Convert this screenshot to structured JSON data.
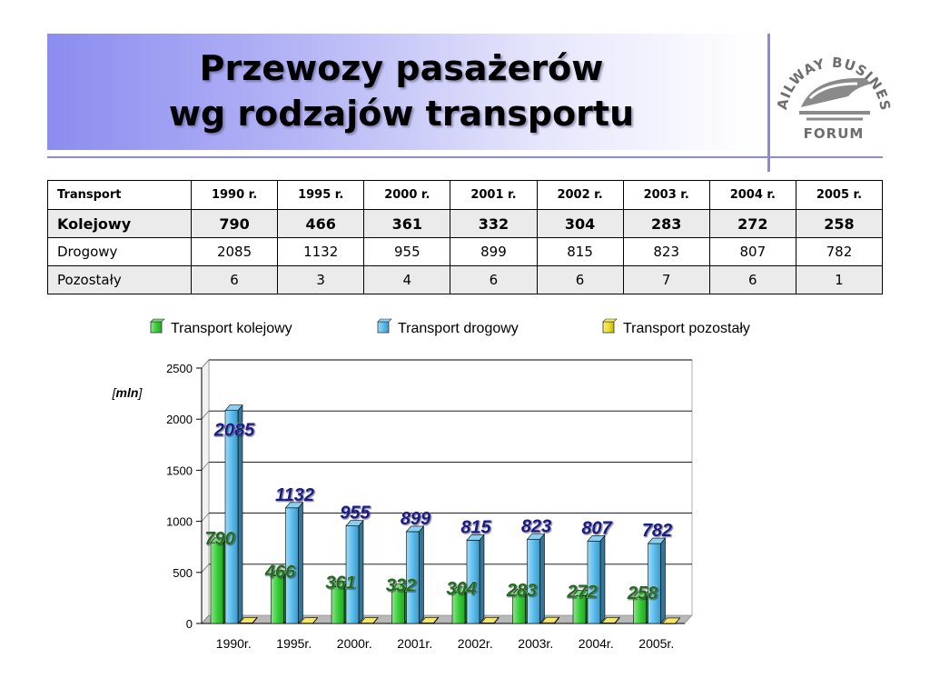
{
  "title_lines": [
    "Przewozy pasażerów",
    "wg rodzajów transportu"
  ],
  "logo": {
    "text": "RAILWAY BUSINESS FORUM"
  },
  "table": {
    "header": [
      "Transport",
      "1990 r.",
      "1995 r.",
      "2000 r.",
      "2001 r.",
      "2002 r.",
      "2003 r.",
      "2004 r.",
      "2005 r."
    ],
    "rows": [
      [
        "Kolejowy",
        "790",
        "466",
        "361",
        "332",
        "304",
        "283",
        "272",
        "258"
      ],
      [
        "Drogowy",
        "2085",
        "1132",
        "955",
        "899",
        "815",
        "823",
        "807",
        "782"
      ],
      [
        "Pozostały",
        "6",
        "3",
        "4",
        "6",
        "6",
        "7",
        "6",
        "1"
      ]
    ]
  },
  "chart_data": {
    "type": "bar",
    "categories": [
      "1990r.",
      "1995r.",
      "2000r.",
      "2001r.",
      "2002r.",
      "2003r.",
      "2004r.",
      "2005r."
    ],
    "series": [
      {
        "name": "Transport kolejowy",
        "values": [
          790,
          466,
          361,
          332,
          304,
          283,
          272,
          258
        ],
        "color": "#33cc33",
        "label_color": "#1f6b1f"
      },
      {
        "name": "Transport drogowy",
        "values": [
          2085,
          1132,
          955,
          899,
          815,
          823,
          807,
          782
        ],
        "color": "#55bbee",
        "label_color": "#1a1a8c"
      },
      {
        "name": "Transport pozostały",
        "values": [
          6,
          3,
          4,
          6,
          6,
          7,
          6,
          1
        ],
        "color": "#eedd22"
      }
    ],
    "yticks": [
      0,
      500,
      1000,
      1500,
      2000,
      2500
    ],
    "ylim": [
      0,
      2500
    ],
    "unit_label": "mln",
    "legend": "top",
    "grid": true
  }
}
